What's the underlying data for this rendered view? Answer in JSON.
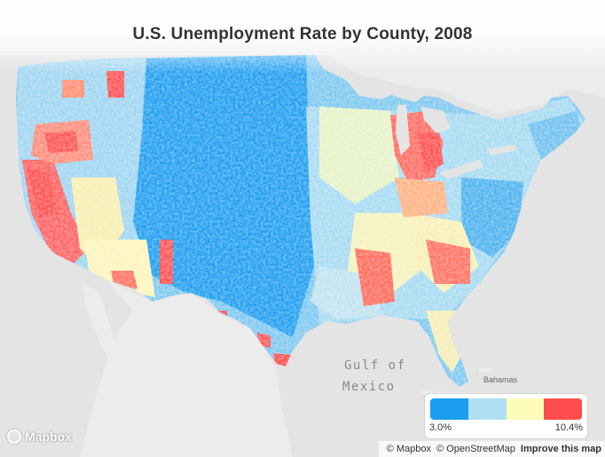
{
  "title": "U.S. Unemployment Rate by County, 2008",
  "labels": {
    "gulf_line1": "Gulf of",
    "gulf_line2": "Mexico",
    "bahamas": "Bahamas"
  },
  "legend": {
    "min_label": "3.0%",
    "max_label": "10.4%",
    "colors": [
      "#1a9cf0",
      "#b1e0f2",
      "#fdfcb9",
      "#ff4d4d"
    ]
  },
  "attribution": {
    "mapbox": "© Mapbox",
    "osm": "© OpenStreetMap",
    "improve": "Improve this map"
  },
  "logo": "Mapbox"
}
